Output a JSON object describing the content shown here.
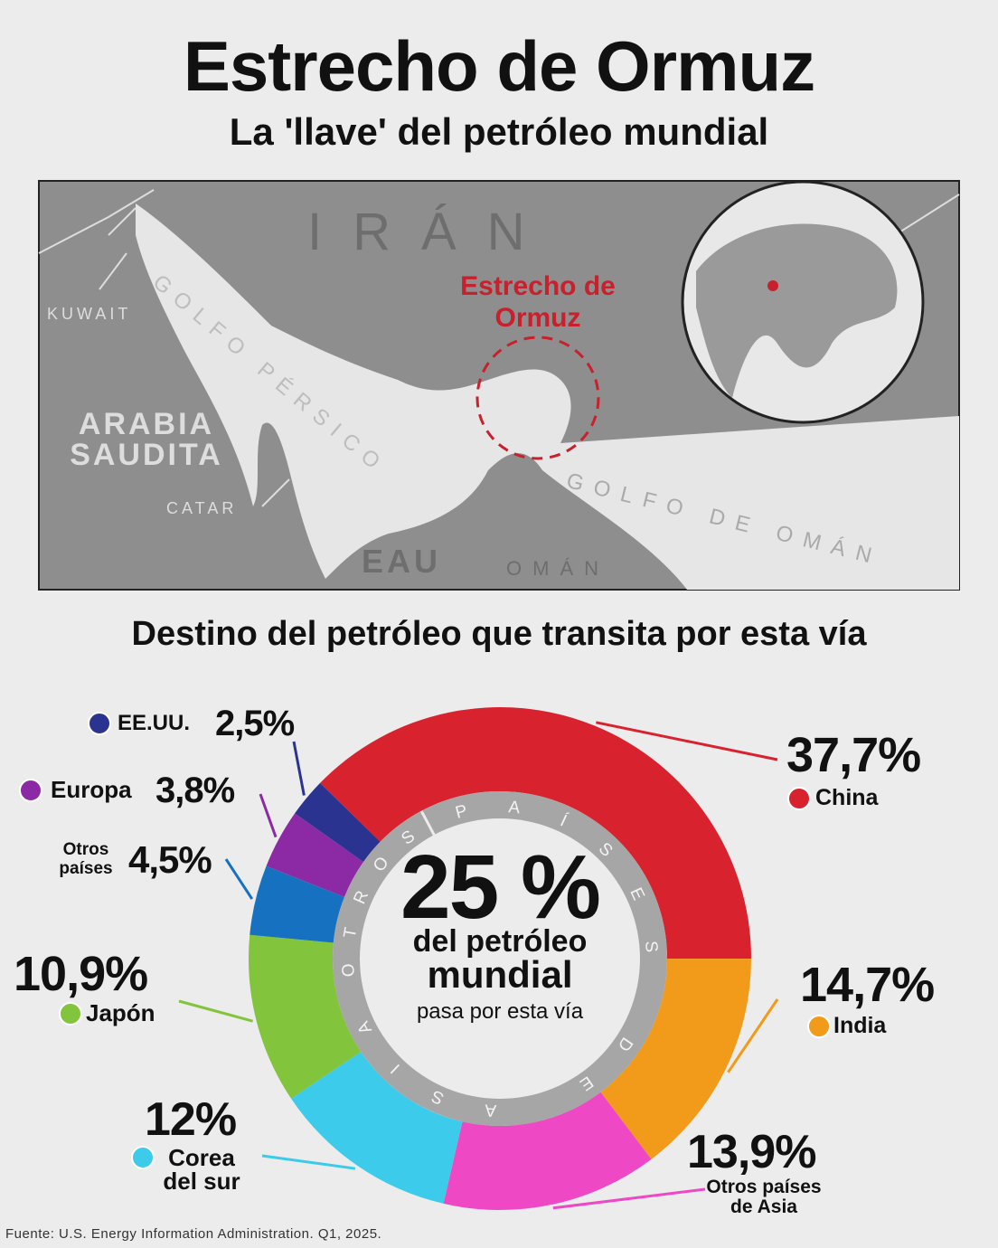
{
  "header": {
    "title": "Estrecho de Ormuz",
    "subtitle": "La 'llave' del petróleo mundial"
  },
  "map": {
    "labels": {
      "iran": "IRÁN",
      "gulf": "GOLFO PÉRSICO",
      "kuwait": "KUWAIT",
      "saudi": "ARABIA SAUDITA",
      "qatar": "CATAR",
      "uae": "EAU",
      "oman": "OMÁN",
      "gulf_oman": "GOLFO DE OMÁN",
      "strait": "Estrecho de Ormuz"
    }
  },
  "chart_data": {
    "type": "donut",
    "title": "Destino del petróleo que transita por esta vía",
    "categories": [
      "China",
      "India",
      "Otros países de Asia",
      "Corea del sur",
      "Japón",
      "Otros países",
      "Europa",
      "EE.UU."
    ],
    "values": [
      37.7,
      14.7,
      13.9,
      12,
      10.9,
      4.5,
      3.8,
      2.5
    ],
    "value_labels": [
      "37,7%",
      "14,7%",
      "13,9%",
      "12%",
      "10,9%",
      "4,5%",
      "3,8%",
      "2,5%"
    ],
    "colors": [
      "#d8232f",
      "#f29a1a",
      "#ef48c4",
      "#3ccbea",
      "#82c43c",
      "#1672c0",
      "#8c2aa6",
      "#2b3391"
    ],
    "ring_labels": [
      "PAÍSES DE ASIA",
      "OTROS"
    ],
    "center": {
      "value": "25 %",
      "line1": "del petróleo",
      "line2": "mundial",
      "line3": "pasa por esta vía"
    }
  },
  "source": "Fuente: U.S. Energy Information Administration. Q1, 2025."
}
